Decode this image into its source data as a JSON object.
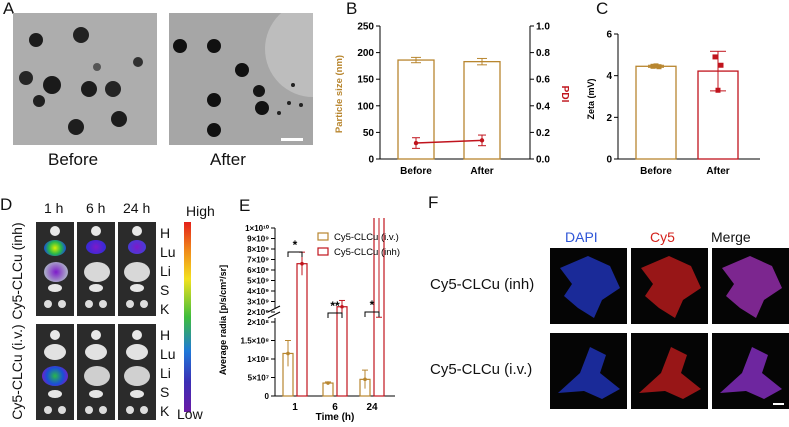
{
  "panels": {
    "a": {
      "label": "A",
      "before": "Before",
      "after": "After"
    },
    "b": {
      "label": "B"
    },
    "c": {
      "label": "C"
    },
    "d": {
      "label": "D",
      "times": [
        "1 h",
        "6 h",
        "24 h"
      ],
      "organs": [
        "H",
        "Lu",
        "Li",
        "S",
        "K"
      ],
      "row_top": "Cy5-CLCu (inh)",
      "row_bottom": "Cy5-CLCu (i.v.)",
      "scale_high": "High",
      "scale_low": "Low"
    },
    "e": {
      "label": "E"
    },
    "f": {
      "label": "F",
      "col_dapi": "DAPI",
      "col_cy5": "Cy5",
      "col_merge": "Merge",
      "row_top": "Cy5-CLCu (inh)",
      "row_bottom": "Cy5-CLCu (i.v.)"
    }
  },
  "colors": {
    "brown": "#b8862f",
    "red": "#c0141d",
    "blue": "#2e55d6",
    "fluor_red": "#d4221c"
  },
  "chart_data": [
    {
      "type": "bar",
      "panel": "B",
      "categories": [
        "Before",
        "After"
      ],
      "ylabel": "Particle size (nm)",
      "ylim": [
        0,
        250
      ],
      "yticks": [
        "0",
        "50",
        "100",
        "150",
        "200",
        "250"
      ],
      "y2label": "PDI",
      "y2lim": [
        0,
        1.0
      ],
      "y2ticks": [
        "0.0",
        "0.2",
        "0.4",
        "0.6",
        "0.8",
        "1.0"
      ],
      "series": [
        {
          "values": [
            186,
            183
          ],
          "errors": [
            5,
            6
          ],
          "color": "#b8862f",
          "axis": "left",
          "kind": "bar"
        },
        {
          "values": [
            0.12,
            0.14
          ],
          "errors": [
            0.04,
            0.04
          ],
          "color": "#c0141d",
          "axis": "right",
          "kind": "line"
        }
      ]
    },
    {
      "type": "bar",
      "panel": "C",
      "categories": [
        "Before",
        "After"
      ],
      "ylabel": "Zeta (mV)",
      "ylim": [
        0,
        6
      ],
      "yticks": [
        "0",
        "2",
        "4",
        "6"
      ],
      "series": [
        {
          "values": [
            4.45,
            4.22
          ],
          "errors": [
            0.05,
            0.95
          ],
          "colors": [
            "#b8862f",
            "#c0141d"
          ],
          "points": [
            [
              4.45,
              4.47,
              4.43
            ],
            [
              4.9,
              3.3,
              4.5
            ]
          ]
        }
      ]
    },
    {
      "type": "bar",
      "panel": "E",
      "categories": [
        "1",
        "6",
        "24"
      ],
      "xlabel": "Time (h)",
      "ylabel": "Average radia [p/s/cm²/sr]",
      "yticks_lower": [
        "0",
        "5×10⁷",
        "1×10⁸",
        "1.5×10⁸",
        "2×10⁸"
      ],
      "yticks_upper": [
        "2×10⁹",
        "3×10⁹",
        "4×10⁹",
        "5×10⁹",
        "6×10⁹",
        "7×10⁹",
        "8×10⁹",
        "9×10⁹",
        "1×10¹⁰"
      ],
      "series": [
        {
          "name": "Cy5-CLCu (i.v.)",
          "color": "#b8862f",
          "values": [
            115000000,
            35000000,
            45000000
          ],
          "errors": [
            35000000,
            3000000,
            25000000
          ]
        },
        {
          "name": "Cy5-CLCu (inh)",
          "color": "#c0141d",
          "values": [
            6600000000,
            2500000000,
            1300000000
          ],
          "errors": [
            1100000000,
            600000000,
            200000000
          ]
        }
      ],
      "significance": [
        "*",
        "**",
        "*"
      ]
    }
  ]
}
